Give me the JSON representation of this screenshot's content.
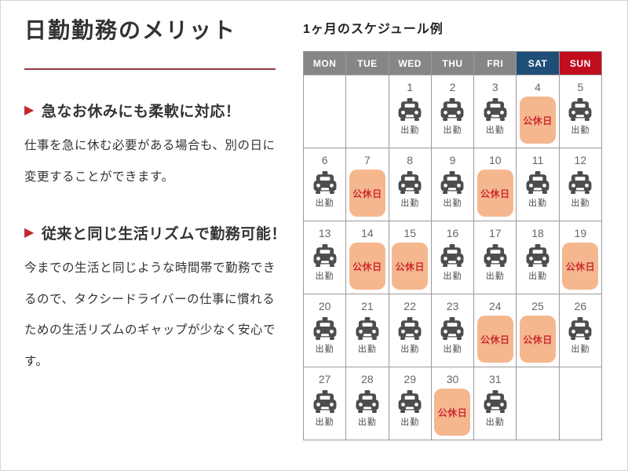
{
  "left": {
    "title": "日勤勤務のメリット",
    "sections": [
      {
        "heading": "急なお休みにも柔軟に対応！",
        "body": "仕事を急に休む必要がある場合も、別の日に変更することができます。"
      },
      {
        "heading": "従来と同じ生活リズムで勤務可能！",
        "body": "今までの生活と同じような時間帯で勤務できるので、タクシードライバーの仕事に慣れるための生活リズムのギャップが少なく安心です。"
      }
    ],
    "arrow_icon": "▶"
  },
  "calendar": {
    "title": "1ヶ月のスケジュール例",
    "day_headers": [
      {
        "label": "MON",
        "type": "weekday"
      },
      {
        "label": "TUE",
        "type": "weekday"
      },
      {
        "label": "WED",
        "type": "weekday"
      },
      {
        "label": "THU",
        "type": "weekday"
      },
      {
        "label": "FRI",
        "type": "weekday"
      },
      {
        "label": "SAT",
        "type": "saturday"
      },
      {
        "label": "SUN",
        "type": "sunday"
      }
    ],
    "work_label": "出勤",
    "holiday_label": "公休日",
    "weeks": [
      [
        null,
        null,
        {
          "day": "1",
          "type": "work"
        },
        {
          "day": "2",
          "type": "work"
        },
        {
          "day": "3",
          "type": "work"
        },
        {
          "day": "4",
          "type": "holiday"
        },
        {
          "day": "5",
          "type": "work"
        }
      ],
      [
        {
          "day": "6",
          "type": "work"
        },
        {
          "day": "7",
          "type": "holiday"
        },
        {
          "day": "8",
          "type": "work"
        },
        {
          "day": "9",
          "type": "work"
        },
        {
          "day": "10",
          "type": "holiday"
        },
        {
          "day": "11",
          "type": "work"
        },
        {
          "day": "12",
          "type": "work"
        }
      ],
      [
        {
          "day": "13",
          "type": "work"
        },
        {
          "day": "14",
          "type": "holiday"
        },
        {
          "day": "15",
          "type": "holiday"
        },
        {
          "day": "16",
          "type": "work"
        },
        {
          "day": "17",
          "type": "work"
        },
        {
          "day": "18",
          "type": "work"
        },
        {
          "day": "19",
          "type": "holiday"
        }
      ],
      [
        {
          "day": "20",
          "type": "work"
        },
        {
          "day": "21",
          "type": "work"
        },
        {
          "day": "22",
          "type": "work"
        },
        {
          "day": "23",
          "type": "work"
        },
        {
          "day": "24",
          "type": "holiday"
        },
        {
          "day": "25",
          "type": "holiday"
        },
        {
          "day": "26",
          "type": "work"
        }
      ],
      [
        {
          "day": "27",
          "type": "work"
        },
        {
          "day": "28",
          "type": "work"
        },
        {
          "day": "29",
          "type": "work"
        },
        {
          "day": "30",
          "type": "holiday"
        },
        {
          "day": "31",
          "type": "work"
        },
        null,
        null
      ]
    ],
    "colors": {
      "weekday_header": "#868686",
      "saturday_header": "#1f4e79",
      "sunday_header": "#c00d1e",
      "holiday_bg": "#f5b78e",
      "holiday_text": "#cc2a31",
      "accent_red": "#c1272d",
      "divider_red": "#953a42",
      "icon_gray": "#4d4d4d"
    }
  }
}
